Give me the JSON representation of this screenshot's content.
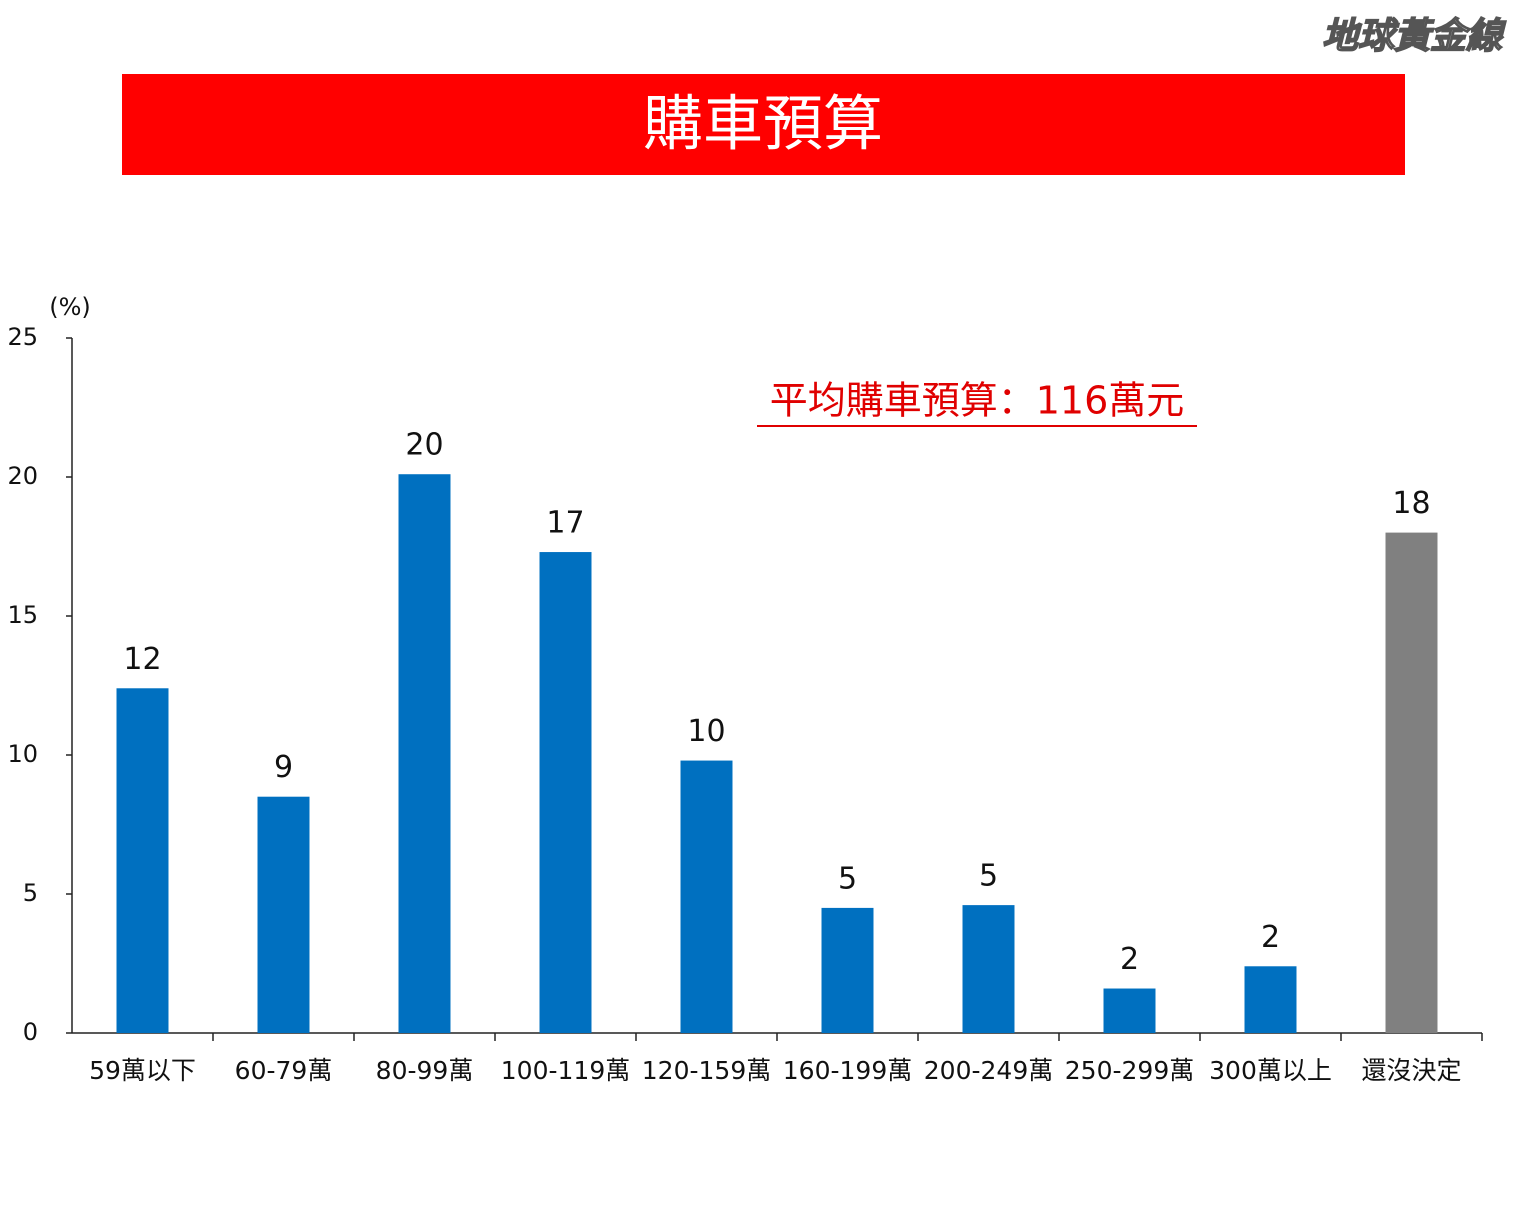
{
  "logo": "地球黃金線",
  "chart_data": {
    "type": "bar",
    "title": "購車預算",
    "y_unit": "(%)",
    "annotation": "平均購車預算：116萬元",
    "categories": [
      "59萬以下",
      "60-79萬",
      "80-99萬",
      "100-119萬",
      "120-159萬",
      "160-199萬",
      "200-249萬",
      "250-299萬",
      "300萬以上",
      "還沒決定"
    ],
    "values": [
      12.4,
      8.5,
      20.1,
      17.3,
      9.8,
      4.5,
      4.6,
      1.6,
      2.4,
      18.0
    ],
    "value_labels": [
      "12",
      "9",
      "20",
      "17",
      "10",
      "5",
      "5",
      "2",
      "2",
      "18"
    ],
    "colors": [
      "#0070c0",
      "#0070c0",
      "#0070c0",
      "#0070c0",
      "#0070c0",
      "#0070c0",
      "#0070c0",
      "#0070c0",
      "#0070c0",
      "#808080"
    ],
    "ylim": [
      0,
      25
    ],
    "yticks": [
      0,
      5,
      10,
      15,
      20,
      25
    ],
    "grid": false
  }
}
